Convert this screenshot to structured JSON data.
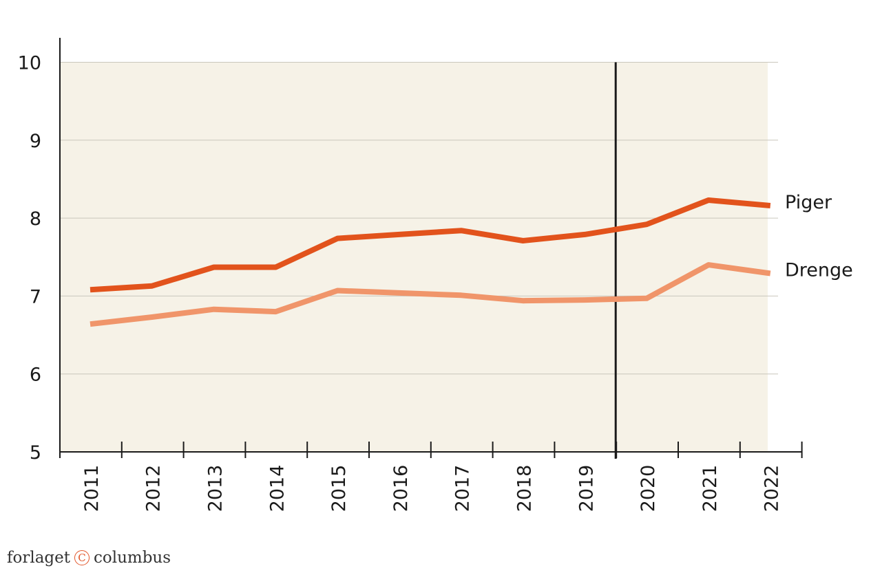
{
  "chart_data": {
    "type": "line",
    "categories": [
      "2011",
      "2012",
      "2013",
      "2014",
      "2015",
      "2016",
      "2017",
      "2018",
      "2019",
      "2020",
      "2021",
      "2022"
    ],
    "series": [
      {
        "name": "Piger",
        "values": [
          7.08,
          7.13,
          7.37,
          7.37,
          7.74,
          7.79,
          7.84,
          7.71,
          7.79,
          7.92,
          8.23,
          8.16
        ],
        "color": "#e2531c"
      },
      {
        "name": "Drenge",
        "values": [
          6.64,
          6.73,
          6.83,
          6.8,
          7.07,
          7.04,
          7.01,
          6.94,
          6.95,
          6.97,
          7.4,
          7.29
        ],
        "color": "#f0956a"
      }
    ],
    "ylim": [
      5,
      10
    ],
    "yticks": [
      "5",
      "6",
      "7",
      "8",
      "9",
      "10"
    ],
    "grid": true,
    "marker": {
      "between": [
        "2019",
        "2020"
      ],
      "color": "#1a1a1a"
    },
    "background_color": "#f6f2e7"
  },
  "footer": {
    "publisher_left": "forlaget",
    "publisher_mark": "C",
    "publisher_right": "columbus"
  }
}
